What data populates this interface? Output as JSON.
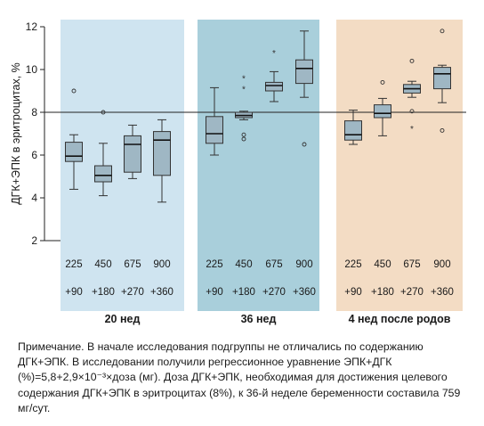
{
  "chart_data": {
    "type": "box",
    "ylabel": "ДГК+ЭПК в эритроцитах, %",
    "ylim": [
      2,
      12
    ],
    "yticks": [
      2,
      4,
      6,
      8,
      10,
      12
    ],
    "reference_line": 8,
    "grid": false,
    "panel_colors": [
      "#cfe4f0",
      "#a9cfdb",
      "#f3dcc4"
    ],
    "box_color": "#9fb7c4",
    "groups": [
      {
        "label": "20 нед",
        "boxes": [
          {
            "dose": "225",
            "dha": "+90",
            "whisker_low": 4.4,
            "q1": 5.7,
            "median": 5.95,
            "q3": 6.6,
            "whisker_high": 6.95,
            "outliers": [
              {
                "value": 9.0,
                "marker": "o"
              }
            ]
          },
          {
            "dose": "450",
            "dha": "+180",
            "whisker_low": 4.1,
            "q1": 4.75,
            "median": 5.05,
            "q3": 5.5,
            "whisker_high": 6.55,
            "outliers": [
              {
                "value": 8.0,
                "marker": "o"
              }
            ]
          },
          {
            "dose": "675",
            "dha": "+270",
            "whisker_low": 4.9,
            "q1": 5.2,
            "median": 6.5,
            "q3": 6.9,
            "whisker_high": 7.4,
            "outliers": []
          },
          {
            "dose": "900",
            "dha": "+360",
            "whisker_low": 3.8,
            "q1": 5.05,
            "median": 6.7,
            "q3": 7.1,
            "whisker_high": 7.65,
            "outliers": []
          }
        ]
      },
      {
        "label": "36 нед",
        "boxes": [
          {
            "dose": "225",
            "dha": "+90",
            "whisker_low": 6.0,
            "q1": 6.55,
            "median": 7.0,
            "q3": 7.8,
            "whisker_high": 9.15,
            "outliers": []
          },
          {
            "dose": "450",
            "dha": "+180",
            "whisker_low": 7.65,
            "q1": 7.75,
            "median": 7.85,
            "q3": 8.0,
            "whisker_high": 8.05,
            "outliers": [
              {
                "value": 9.6,
                "marker": "*"
              },
              {
                "value": 9.1,
                "marker": "*"
              },
              {
                "value": 6.95,
                "marker": "o"
              },
              {
                "value": 6.75,
                "marker": "o"
              }
            ]
          },
          {
            "dose": "675",
            "dha": "+270",
            "whisker_low": 8.5,
            "q1": 9.0,
            "median": 9.25,
            "q3": 9.4,
            "whisker_high": 9.9,
            "outliers": [
              {
                "value": 10.8,
                "marker": "*"
              }
            ]
          },
          {
            "dose": "900",
            "dha": "+360",
            "whisker_low": 8.7,
            "q1": 9.35,
            "median": 10.05,
            "q3": 10.45,
            "whisker_high": 11.8,
            "outliers": [
              {
                "value": 6.5,
                "marker": "o"
              }
            ]
          }
        ]
      },
      {
        "label": "4 нед после родов",
        "boxes": [
          {
            "dose": "225",
            "dha": "+90",
            "whisker_low": 6.5,
            "q1": 6.7,
            "median": 6.95,
            "q3": 7.6,
            "whisker_high": 8.1,
            "outliers": []
          },
          {
            "dose": "450",
            "dha": "+180",
            "whisker_low": 6.9,
            "q1": 7.75,
            "median": 7.95,
            "q3": 8.35,
            "whisker_high": 8.65,
            "outliers": [
              {
                "value": 9.4,
                "marker": "o"
              }
            ]
          },
          {
            "dose": "675",
            "dha": "+270",
            "whisker_low": 8.7,
            "q1": 8.9,
            "median": 9.1,
            "q3": 9.3,
            "whisker_high": 9.45,
            "outliers": [
              {
                "value": 10.4,
                "marker": "o"
              },
              {
                "value": 8.05,
                "marker": "o"
              },
              {
                "value": 7.25,
                "marker": "*"
              }
            ]
          },
          {
            "dose": "900",
            "dha": "+360",
            "whisker_low": 8.45,
            "q1": 9.1,
            "median": 9.8,
            "q3": 10.1,
            "whisker_high": 10.2,
            "outliers": [
              {
                "value": 11.8,
                "marker": "o"
              },
              {
                "value": 7.15,
                "marker": "o"
              }
            ]
          }
        ]
      }
    ]
  },
  "note": "Примечание. В начале исследования подгруппы не отличались по содержанию ДГК+ЭПК. В исследовании получили регрессионное уравнение ЭПК+ДГК (%)=5,8+2,9×10⁻³×доза (мг). Доза ДГК+ЭПК, необходимая для достижения целевого содержания ДГК+ЭПК в эритроцитах (8%), к 36-й неделе беременности составила 759 мг/сут."
}
